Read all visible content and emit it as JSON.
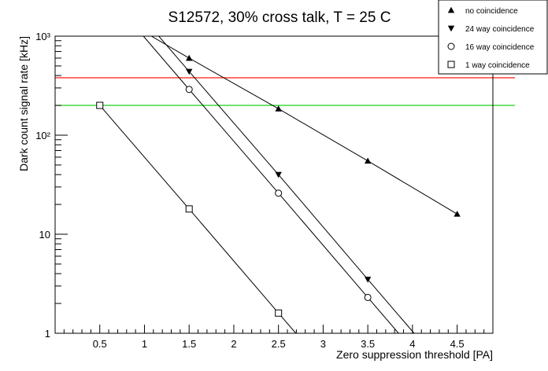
{
  "chart_data": {
    "type": "line",
    "title": "S12572, 30% cross talk, T = 25 C",
    "xlabel": "Zero suppression threshold [PA]",
    "ylabel": "Dark count signal rate [kHz]",
    "xlim": [
      0.0,
      4.9
    ],
    "ylim": [
      1,
      1000
    ],
    "yscale": "log",
    "xticks": [
      0.5,
      1,
      1.5,
      2,
      2.5,
      3,
      3.5,
      4,
      4.5
    ],
    "xtick_labels": [
      "0.5",
      "1",
      "1.5",
      "2",
      "2.5",
      "3",
      "3.5",
      "4",
      "4.5"
    ],
    "yticks": [
      1,
      10,
      100,
      1000
    ],
    "ytick_labels": [
      "1",
      "10",
      "10²",
      "10³"
    ],
    "legend_position": "top-right",
    "series": [
      {
        "name": "no coincidence",
        "marker": "triangle-up",
        "color": "#000000",
        "x": [
          1.5,
          2.5,
          3.5,
          4.5
        ],
        "y": [
          600,
          185,
          55,
          16
        ]
      },
      {
        "name": "24 way coincidence",
        "marker": "triangle-down",
        "color": "#000000",
        "x": [
          1.5,
          2.5,
          3.5
        ],
        "y": [
          440,
          40,
          3.5
        ]
      },
      {
        "name": "16 way coincidence",
        "marker": "circle-open",
        "color": "#000000",
        "x": [
          1.5,
          2.5,
          3.5
        ],
        "y": [
          290,
          26,
          2.3
        ]
      },
      {
        "name": "1 way coincidence",
        "marker": "square-open",
        "color": "#000000",
        "x": [
          0.5,
          1.5,
          2.5
        ],
        "y": [
          200,
          18,
          1.6
        ]
      }
    ],
    "reference_lines": [
      {
        "y": 380,
        "color": "#ff0000"
      },
      {
        "y": 200,
        "color": "#00cc00"
      }
    ]
  }
}
